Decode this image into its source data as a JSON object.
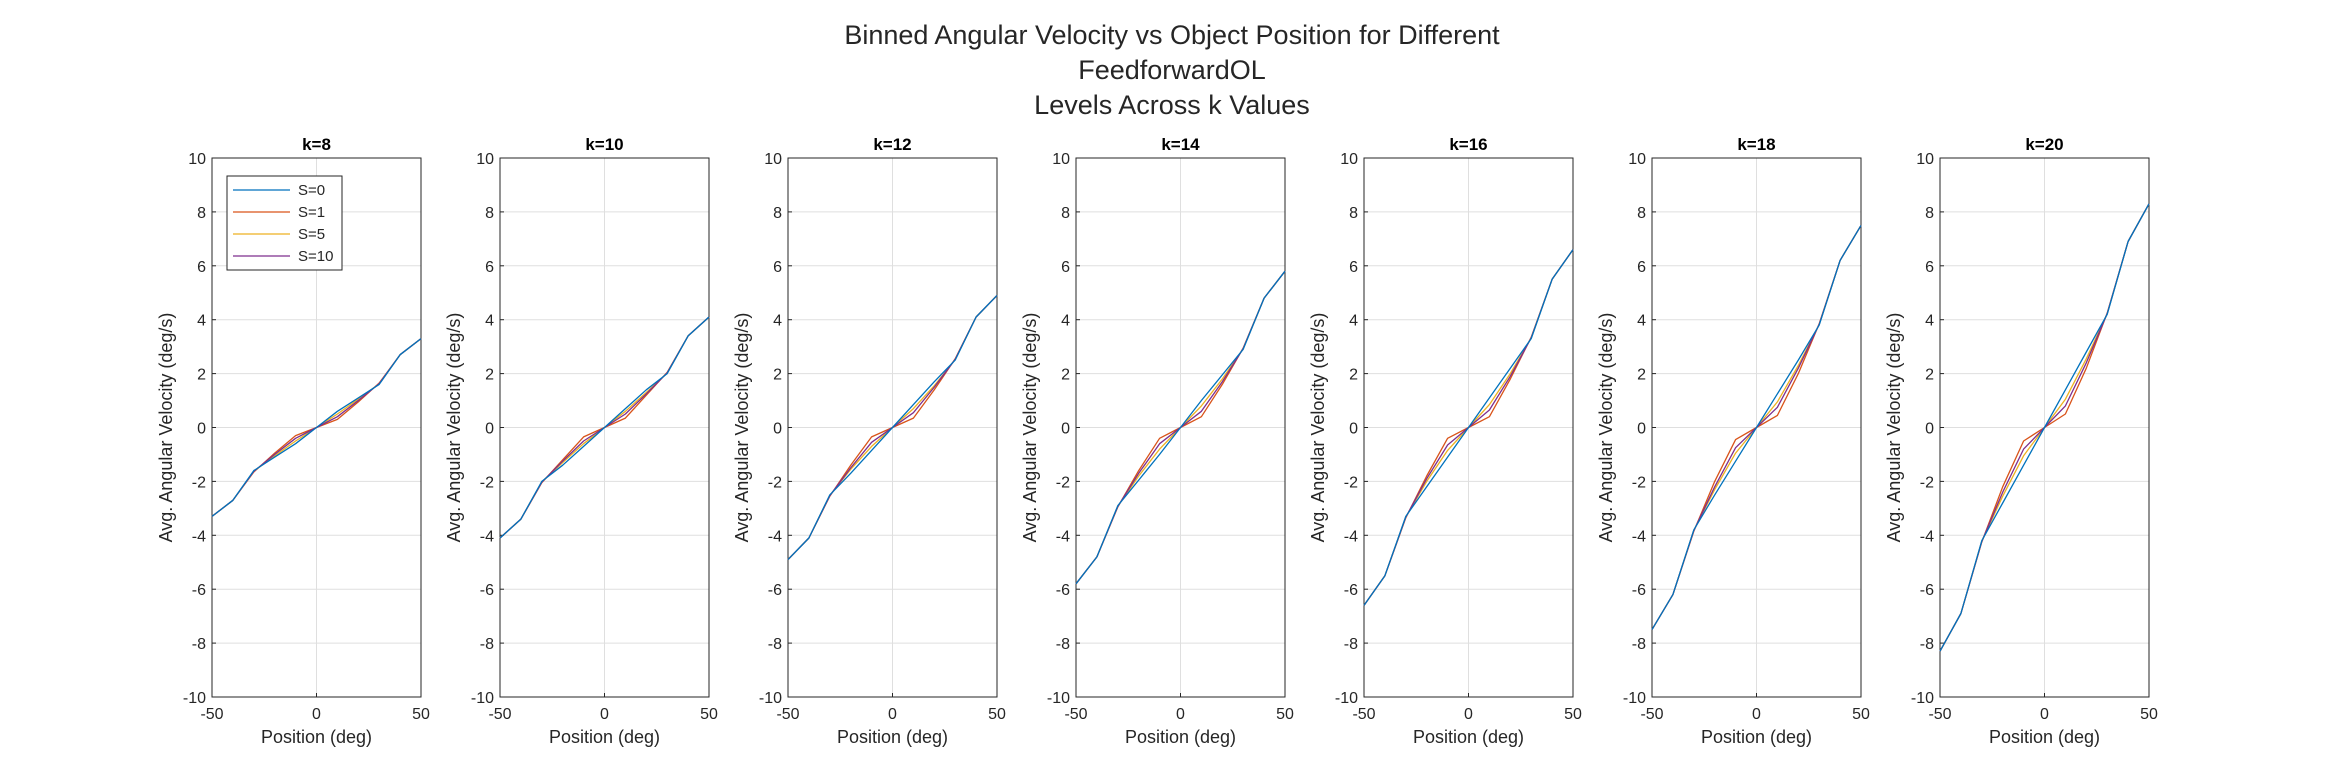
{
  "figure": {
    "title_lines": [
      "Binned Angular Velocity vs Object Position for Different",
      "FeedforwardOL",
      "Levels Across k Values"
    ]
  },
  "colors": {
    "S=0": "#0072BD",
    "S=1": "#D95319",
    "S=5": "#EDB120",
    "S=10": "#7E2F8E",
    "grid": "#dfdfdf",
    "axis": "#262626"
  },
  "chart_data": [
    {
      "type": "line",
      "title": "k=8",
      "xlabel": "Position (deg)",
      "ylabel": "Avg. Angular Velocity (deg/s)",
      "xlim": [
        -50,
        50
      ],
      "ylim": [
        -10,
        10
      ],
      "xticks": [
        -50,
        0,
        50
      ],
      "yticks": [
        -10,
        -8,
        -6,
        -4,
        -2,
        0,
        2,
        4,
        6,
        8,
        10
      ],
      "grid": true,
      "legend": "top-left",
      "x": [
        -50,
        -40,
        -30,
        -20,
        -10,
        0,
        10,
        20,
        30,
        40,
        50
      ],
      "series": [
        {
          "name": "S=0",
          "values": [
            -3.3,
            -2.7,
            -1.6,
            -1.1,
            -0.6,
            0,
            0.6,
            1.1,
            1.6,
            2.7,
            3.3
          ]
        },
        {
          "name": "S=1",
          "values": [
            -3.3,
            -2.7,
            -1.65,
            -0.95,
            -0.3,
            0,
            0.3,
            0.95,
            1.65,
            2.7,
            3.3
          ]
        },
        {
          "name": "S=5",
          "values": [
            -3.3,
            -2.7,
            -1.62,
            -1.05,
            -0.5,
            0,
            0.5,
            1.05,
            1.62,
            2.7,
            3.3
          ]
        },
        {
          "name": "S=10",
          "values": [
            -3.3,
            -2.7,
            -1.63,
            -1.0,
            -0.4,
            0,
            0.4,
            1.0,
            1.63,
            2.7,
            3.3
          ]
        }
      ]
    },
    {
      "type": "line",
      "title": "k=10",
      "xlabel": "Position (deg)",
      "ylabel": "Avg. Angular Velocity (deg/s)",
      "xlim": [
        -50,
        50
      ],
      "ylim": [
        -10,
        10
      ],
      "xticks": [
        -50,
        0,
        50
      ],
      "yticks": [
        -10,
        -8,
        -6,
        -4,
        -2,
        0,
        2,
        4,
        6,
        8,
        10
      ],
      "grid": true,
      "legend": "none",
      "x": [
        -50,
        -40,
        -30,
        -20,
        -10,
        0,
        10,
        20,
        30,
        40,
        50
      ],
      "series": [
        {
          "name": "S=0",
          "values": [
            -4.1,
            -3.4,
            -2.0,
            -1.4,
            -0.7,
            0,
            0.7,
            1.4,
            2.0,
            3.4,
            4.1
          ]
        },
        {
          "name": "S=1",
          "values": [
            -4.1,
            -3.4,
            -2.05,
            -1.2,
            -0.35,
            0,
            0.35,
            1.2,
            2.05,
            3.4,
            4.1
          ]
        },
        {
          "name": "S=5",
          "values": [
            -4.1,
            -3.4,
            -2.02,
            -1.3,
            -0.6,
            0,
            0.6,
            1.3,
            2.02,
            3.4,
            4.1
          ]
        },
        {
          "name": "S=10",
          "values": [
            -4.1,
            -3.4,
            -2.03,
            -1.25,
            -0.5,
            0,
            0.5,
            1.25,
            2.03,
            3.4,
            4.1
          ]
        }
      ]
    },
    {
      "type": "line",
      "title": "k=12",
      "xlabel": "Position (deg)",
      "ylabel": "Avg. Angular Velocity (deg/s)",
      "xlim": [
        -50,
        50
      ],
      "ylim": [
        -10,
        10
      ],
      "xticks": [
        -50,
        0,
        50
      ],
      "yticks": [
        -10,
        -8,
        -6,
        -4,
        -2,
        0,
        2,
        4,
        6,
        8,
        10
      ],
      "grid": true,
      "legend": "none",
      "x": [
        -50,
        -40,
        -30,
        -20,
        -10,
        0,
        10,
        20,
        30,
        40,
        50
      ],
      "series": [
        {
          "name": "S=0",
          "values": [
            -4.9,
            -4.1,
            -2.5,
            -1.7,
            -0.85,
            0,
            0.85,
            1.7,
            2.5,
            4.1,
            4.9
          ]
        },
        {
          "name": "S=1",
          "values": [
            -4.9,
            -4.1,
            -2.55,
            -1.4,
            -0.35,
            0,
            0.35,
            1.4,
            2.55,
            4.1,
            4.9
          ]
        },
        {
          "name": "S=5",
          "values": [
            -4.9,
            -4.1,
            -2.52,
            -1.55,
            -0.7,
            0,
            0.7,
            1.55,
            2.52,
            4.1,
            4.9
          ]
        },
        {
          "name": "S=10",
          "values": [
            -4.9,
            -4.1,
            -2.53,
            -1.5,
            -0.55,
            0,
            0.55,
            1.5,
            2.53,
            4.1,
            4.9
          ]
        }
      ]
    },
    {
      "type": "line",
      "title": "k=14",
      "xlabel": "Position (deg)",
      "ylabel": "Avg. Angular Velocity (deg/s)",
      "xlim": [
        -50,
        50
      ],
      "ylim": [
        -10,
        10
      ],
      "xticks": [
        -50,
        0,
        50
      ],
      "yticks": [
        -10,
        -8,
        -6,
        -4,
        -2,
        0,
        2,
        4,
        6,
        8,
        10
      ],
      "grid": true,
      "legend": "none",
      "x": [
        -50,
        -40,
        -30,
        -20,
        -10,
        0,
        10,
        20,
        30,
        40,
        50
      ],
      "series": [
        {
          "name": "S=0",
          "values": [
            -5.8,
            -4.8,
            -2.9,
            -1.95,
            -1.0,
            0,
            1.0,
            1.95,
            2.9,
            4.8,
            5.8
          ]
        },
        {
          "name": "S=1",
          "values": [
            -5.8,
            -4.8,
            -2.95,
            -1.6,
            -0.4,
            0,
            0.4,
            1.6,
            2.95,
            4.8,
            5.8
          ]
        },
        {
          "name": "S=5",
          "values": [
            -5.8,
            -4.8,
            -2.92,
            -1.8,
            -0.8,
            0,
            0.8,
            1.8,
            2.92,
            4.8,
            5.8
          ]
        },
        {
          "name": "S=10",
          "values": [
            -5.8,
            -4.8,
            -2.93,
            -1.7,
            -0.6,
            0,
            0.6,
            1.7,
            2.93,
            4.8,
            5.8
          ]
        }
      ]
    },
    {
      "type": "line",
      "title": "k=16",
      "xlabel": "Position (deg)",
      "ylabel": "Avg. Angular Velocity (deg/s)",
      "xlim": [
        -50,
        50
      ],
      "ylim": [
        -10,
        10
      ],
      "xticks": [
        -50,
        0,
        50
      ],
      "yticks": [
        -10,
        -8,
        -6,
        -4,
        -2,
        0,
        2,
        4,
        6,
        8,
        10
      ],
      "grid": true,
      "legend": "none",
      "x": [
        -50,
        -40,
        -30,
        -20,
        -10,
        0,
        10,
        20,
        30,
        40,
        50
      ],
      "series": [
        {
          "name": "S=0",
          "values": [
            -6.6,
            -5.5,
            -3.3,
            -2.2,
            -1.1,
            0,
            1.1,
            2.2,
            3.3,
            5.5,
            6.6
          ]
        },
        {
          "name": "S=1",
          "values": [
            -6.6,
            -5.5,
            -3.35,
            -1.8,
            -0.4,
            0,
            0.4,
            1.8,
            3.35,
            5.5,
            6.6
          ]
        },
        {
          "name": "S=5",
          "values": [
            -6.6,
            -5.5,
            -3.32,
            -2.0,
            -0.85,
            0,
            0.85,
            2.0,
            3.32,
            5.5,
            6.6
          ]
        },
        {
          "name": "S=10",
          "values": [
            -6.6,
            -5.5,
            -3.33,
            -1.9,
            -0.65,
            0,
            0.65,
            1.9,
            3.33,
            5.5,
            6.6
          ]
        }
      ]
    },
    {
      "type": "line",
      "title": "k=18",
      "xlabel": "Position (deg)",
      "ylabel": "Avg. Angular Velocity (deg/s)",
      "xlim": [
        -50,
        50
      ],
      "ylim": [
        -10,
        10
      ],
      "xticks": [
        -50,
        0,
        50
      ],
      "yticks": [
        -10,
        -8,
        -6,
        -4,
        -2,
        0,
        2,
        4,
        6,
        8,
        10
      ],
      "grid": true,
      "legend": "none",
      "x": [
        -50,
        -40,
        -30,
        -20,
        -10,
        0,
        10,
        20,
        30,
        40,
        50
      ],
      "series": [
        {
          "name": "S=0",
          "values": [
            -7.5,
            -6.2,
            -3.8,
            -2.5,
            -1.25,
            0,
            1.25,
            2.5,
            3.8,
            6.2,
            7.5
          ]
        },
        {
          "name": "S=1",
          "values": [
            -7.5,
            -6.2,
            -3.85,
            -2.0,
            -0.45,
            0,
            0.45,
            2.0,
            3.85,
            6.2,
            7.5
          ]
        },
        {
          "name": "S=5",
          "values": [
            -7.5,
            -6.2,
            -3.82,
            -2.3,
            -0.95,
            0,
            0.95,
            2.3,
            3.82,
            6.2,
            7.5
          ]
        },
        {
          "name": "S=10",
          "values": [
            -7.5,
            -6.2,
            -3.83,
            -2.2,
            -0.75,
            0,
            0.75,
            2.2,
            3.83,
            6.2,
            7.5
          ]
        }
      ]
    },
    {
      "type": "line",
      "title": "k=20",
      "xlabel": "Position (deg)",
      "ylabel": "Avg. Angular Velocity (deg/s)",
      "xlim": [
        -50,
        50
      ],
      "ylim": [
        -10,
        10
      ],
      "xticks": [
        -50,
        0,
        50
      ],
      "yticks": [
        -10,
        -8,
        -6,
        -4,
        -2,
        0,
        2,
        4,
        6,
        8,
        10
      ],
      "grid": true,
      "legend": "none",
      "x": [
        -50,
        -40,
        -30,
        -20,
        -10,
        0,
        10,
        20,
        30,
        40,
        50
      ],
      "series": [
        {
          "name": "S=0",
          "values": [
            -8.3,
            -6.9,
            -4.2,
            -2.8,
            -1.4,
            0,
            1.4,
            2.8,
            4.2,
            6.9,
            8.3
          ]
        },
        {
          "name": "S=1",
          "values": [
            -8.3,
            -6.9,
            -4.25,
            -2.2,
            -0.5,
            0,
            0.5,
            2.2,
            4.25,
            6.9,
            8.3
          ]
        },
        {
          "name": "S=5",
          "values": [
            -8.3,
            -6.9,
            -4.22,
            -2.55,
            -1.05,
            0,
            1.05,
            2.55,
            4.22,
            6.9,
            8.3
          ]
        },
        {
          "name": "S=10",
          "values": [
            -8.3,
            -6.9,
            -4.23,
            -2.4,
            -0.8,
            0,
            0.8,
            2.4,
            4.23,
            6.9,
            8.3
          ]
        }
      ]
    }
  ]
}
